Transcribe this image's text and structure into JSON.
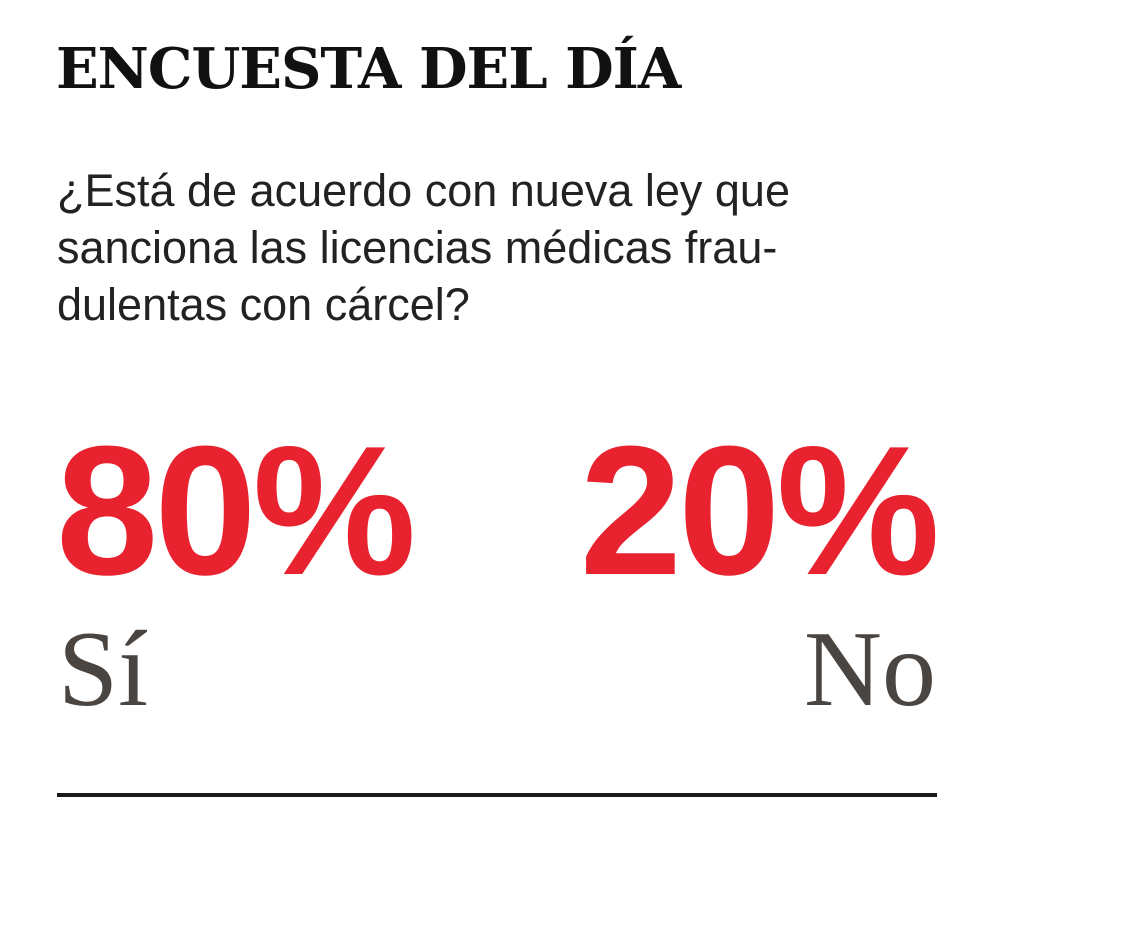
{
  "header": {
    "title": "ENCUESTA DEL DÍA"
  },
  "question": {
    "lines": [
      "¿Está de acuerdo con nueva ley que",
      "sanciona las licencias médicas frau-",
      "dulentas con cárcel?"
    ]
  },
  "results": [
    {
      "percent": "80%",
      "answer": "Sí"
    },
    {
      "percent": "20%",
      "answer": "No"
    }
  ]
}
